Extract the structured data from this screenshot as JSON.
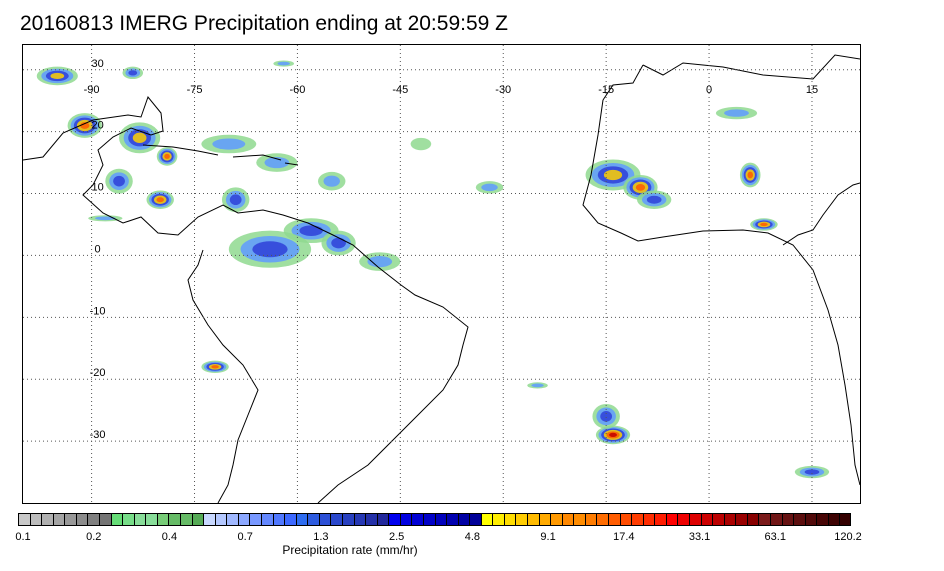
{
  "title": "20160813 IMERG Precipitation ending at 20:59:59 Z",
  "map": {
    "lon_range": [
      -100,
      22
    ],
    "lat_range": [
      -40,
      34
    ],
    "lon_ticks": [
      -90,
      -75,
      -60,
      -45,
      -30,
      -15,
      0,
      15
    ],
    "lon_tick_labels": [
      "-90",
      "-75",
      "-60",
      "-45",
      "-30",
      "-15",
      "0",
      "15"
    ],
    "lat_ticks": [
      30,
      20,
      10,
      0,
      -10,
      -20,
      -30
    ],
    "lat_tick_labels": [
      "30",
      "20",
      "10",
      "0",
      "-10",
      "-20",
      "-30"
    ],
    "gridlines": "dotted"
  },
  "colorbar": {
    "label": "Precipitation rate (mm/hr)",
    "tick_labels": [
      "0.1",
      "0.2",
      "0.4",
      "0.7",
      "1.3",
      "2.5",
      "4.8",
      "9.1",
      "17.4",
      "33.1",
      "63.1",
      "120.2"
    ],
    "colors": [
      "#c8c8c8",
      "#bcbcbc",
      "#b0b0b0",
      "#a4a4a4",
      "#989898",
      "#8c8c8c",
      "#808080",
      "#747474",
      "#66dd77",
      "#77dd88",
      "#88dd99",
      "#88dd99",
      "#77cc77",
      "#66bb66",
      "#66bb66",
      "#55aa55",
      "#c8d8ff",
      "#b4c8ff",
      "#a0b8ff",
      "#8ca8ff",
      "#7898ff",
      "#6488ff",
      "#5078ff",
      "#3c68ff",
      "#2e6cf0",
      "#2e5ce0",
      "#2c50d6",
      "#2a48cc",
      "#2840c0",
      "#2638b4",
      "#2430a8",
      "#22289c",
      "#0000ee",
      "#0000e0",
      "#0000d4",
      "#0000c8",
      "#0000bc",
      "#0000b0",
      "#0000a4",
      "#000098",
      "#ffff00",
      "#ffee00",
      "#ffdd00",
      "#ffcc00",
      "#ffbb00",
      "#ffaa00",
      "#ff9900",
      "#ff8800",
      "#ff8c00",
      "#ff7c00",
      "#ff6c00",
      "#ff5c00",
      "#ff4c00",
      "#ff3c00",
      "#ff2c00",
      "#ff1c00",
      "#ff0000",
      "#ee0000",
      "#dd0000",
      "#cc0000",
      "#bb0000",
      "#aa0000",
      "#990000",
      "#880000",
      "#7a1a1a",
      "#701616",
      "#661212",
      "#5c0e0e",
      "#520a0a",
      "#480606",
      "#3e0303",
      "#340000"
    ]
  },
  "precip_cells": [
    {
      "lon": -95,
      "lat": 29,
      "w": 6,
      "h": 3,
      "i": 3
    },
    {
      "lon": -84,
      "lat": 29.5,
      "w": 3,
      "h": 2,
      "i": 2
    },
    {
      "lon": -91,
      "lat": 21,
      "w": 5,
      "h": 4,
      "i": 4
    },
    {
      "lon": -83,
      "lat": 19,
      "w": 6,
      "h": 5,
      "i": 3
    },
    {
      "lon": -79,
      "lat": 16,
      "w": 3,
      "h": 3,
      "i": 4
    },
    {
      "lon": -70,
      "lat": 18,
      "w": 8,
      "h": 3,
      "i": 1
    },
    {
      "lon": -63,
      "lat": 15,
      "w": 6,
      "h": 3,
      "i": 1
    },
    {
      "lon": -86,
      "lat": 12,
      "w": 4,
      "h": 4,
      "i": 2
    },
    {
      "lon": -80,
      "lat": 9,
      "w": 4,
      "h": 3,
      "i": 4
    },
    {
      "lon": -69,
      "lat": 9,
      "w": 4,
      "h": 4,
      "i": 2
    },
    {
      "lon": -58,
      "lat": 4,
      "w": 8,
      "h": 4,
      "i": 2
    },
    {
      "lon": -64,
      "lat": 1,
      "w": 12,
      "h": 6,
      "i": 2
    },
    {
      "lon": -54,
      "lat": 2,
      "w": 5,
      "h": 4,
      "i": 2
    },
    {
      "lon": -48,
      "lat": -1,
      "w": 6,
      "h": 3,
      "i": 1
    },
    {
      "lon": -55,
      "lat": 12,
      "w": 4,
      "h": 3,
      "i": 1
    },
    {
      "lon": -42,
      "lat": 18,
      "w": 3,
      "h": 2,
      "i": 0
    },
    {
      "lon": -32,
      "lat": 11,
      "w": 4,
      "h": 2,
      "i": 1
    },
    {
      "lon": -14,
      "lat": 13,
      "w": 8,
      "h": 5,
      "i": 3
    },
    {
      "lon": -10,
      "lat": 11,
      "w": 5,
      "h": 4,
      "i": 4
    },
    {
      "lon": -8,
      "lat": 9,
      "w": 5,
      "h": 3,
      "i": 2
    },
    {
      "lon": 4,
      "lat": 23,
      "w": 6,
      "h": 2,
      "i": 1
    },
    {
      "lon": 6,
      "lat": 13,
      "w": 3,
      "h": 4,
      "i": 4
    },
    {
      "lon": 8,
      "lat": 5,
      "w": 4,
      "h": 2,
      "i": 4
    },
    {
      "lon": -72,
      "lat": -18,
      "w": 4,
      "h": 2,
      "i": 4
    },
    {
      "lon": -14,
      "lat": -29,
      "w": 5,
      "h": 3,
      "i": 5
    },
    {
      "lon": -15,
      "lat": -26,
      "w": 4,
      "h": 4,
      "i": 2
    },
    {
      "lon": 15,
      "lat": -35,
      "w": 5,
      "h": 2,
      "i": 2
    },
    {
      "lon": -25,
      "lat": -21,
      "w": 3,
      "h": 1,
      "i": 1
    },
    {
      "lon": -62,
      "lat": 31,
      "w": 3,
      "h": 1,
      "i": 1
    },
    {
      "lon": -88,
      "lat": 6,
      "w": 5,
      "h": 1,
      "i": 1
    }
  ]
}
